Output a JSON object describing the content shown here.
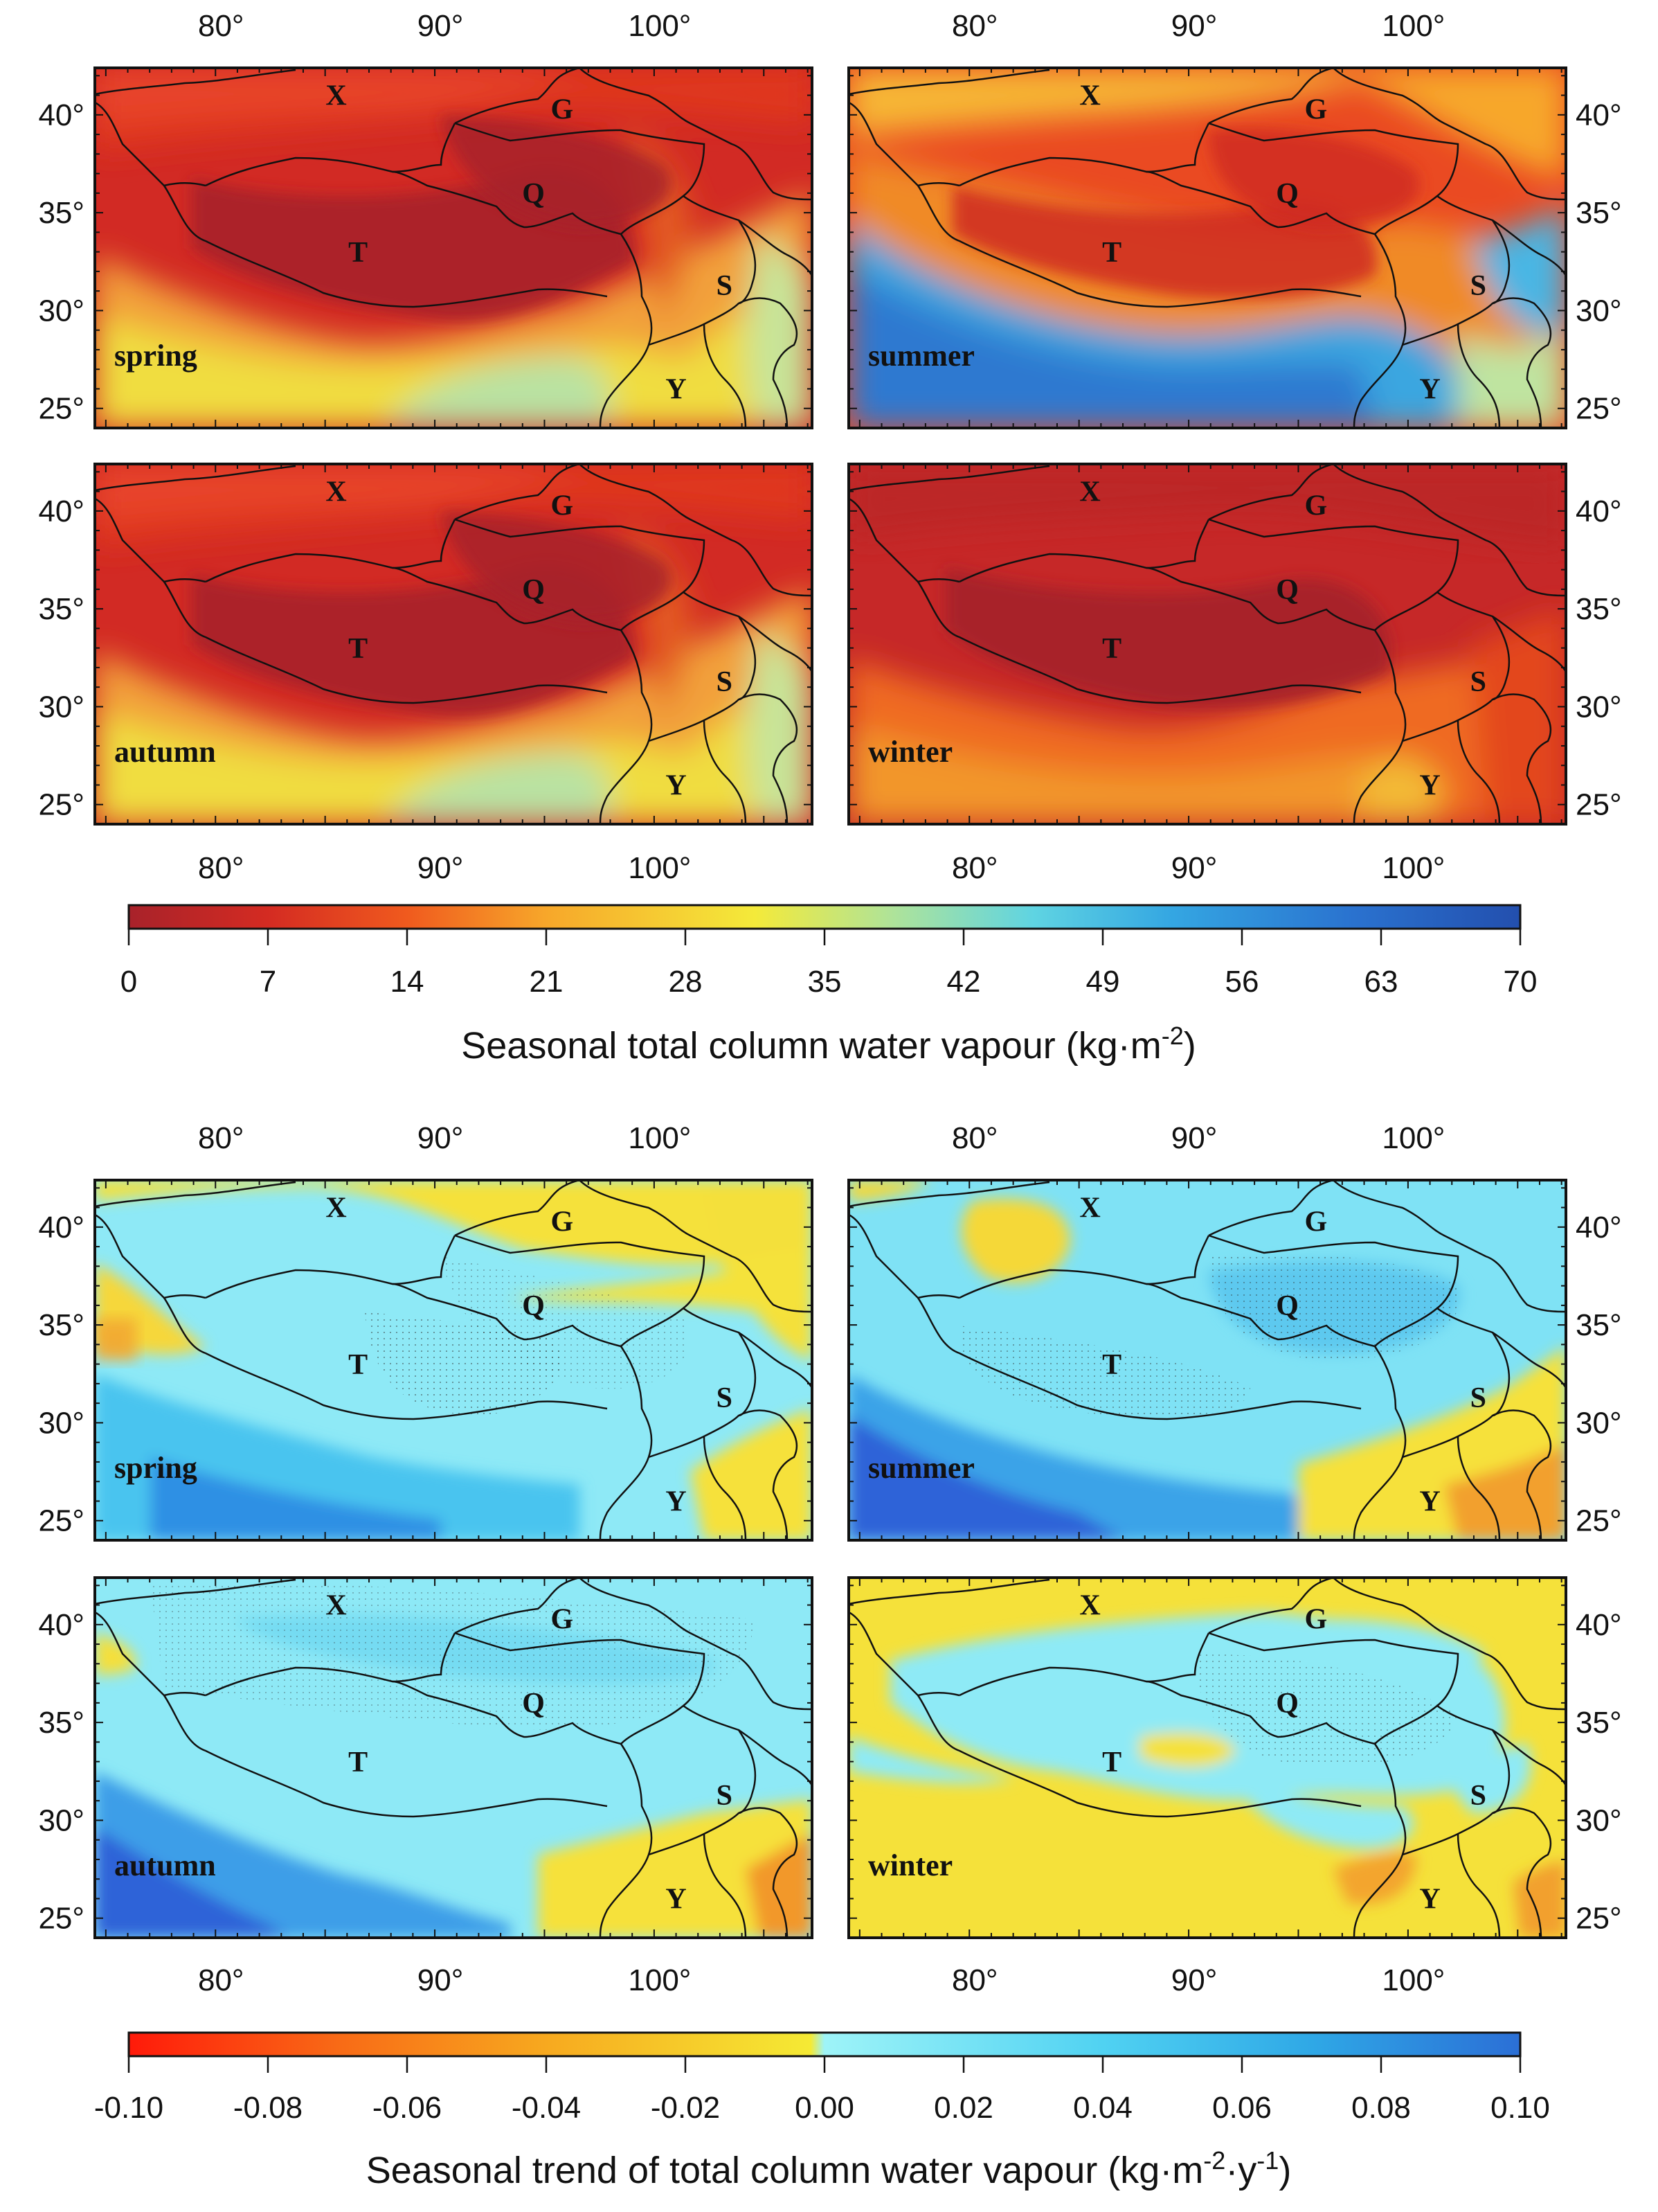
{
  "regions": [
    {
      "label": "X",
      "lon": 85.5,
      "lat": 40.5
    },
    {
      "label": "G",
      "lon": 95.8,
      "lat": 39.8
    },
    {
      "label": "Q",
      "lon": 94.5,
      "lat": 35.5
    },
    {
      "label": "T",
      "lon": 86.5,
      "lat": 32.5
    },
    {
      "label": "S",
      "lon": 103.2,
      "lat": 30.8
    },
    {
      "label": "Y",
      "lon": 101.0,
      "lat": 25.5
    }
  ],
  "map_extent": {
    "lon": [
      74.5,
      107.2
    ],
    "lat": [
      24.0,
      42.4
    ]
  },
  "lon_ticks": [
    "80°",
    "90°",
    "100°"
  ],
  "lat_ticks": [
    "25°",
    "30°",
    "35°",
    "40°"
  ],
  "top_figure": {
    "panels": [
      {
        "season": "spring",
        "style": "base"
      },
      {
        "season": "summer",
        "style": "wet"
      },
      {
        "season": "autumn",
        "style": "base"
      },
      {
        "season": "winter",
        "style": "dry"
      }
    ],
    "colorbar": {
      "ticks": [
        "0",
        "7",
        "14",
        "21",
        "28",
        "35",
        "42",
        "49",
        "56",
        "63",
        "70"
      ],
      "colors": [
        "#a8222a",
        "#d42b22",
        "#f05a1e",
        "#f7a72a",
        "#f4ea3a",
        "#aee39a",
        "#5fd4e2",
        "#34a6e2",
        "#2a72cf",
        "#234fae"
      ],
      "title": "Seasonal total column water vapour (kg·m",
      "title_sup": "-2",
      "title_end": ")"
    }
  },
  "bottom_figure": {
    "panels": [
      {
        "season": "spring",
        "style": "tspring"
      },
      {
        "season": "summer",
        "style": "tsummer"
      },
      {
        "season": "autumn",
        "style": "tautumn"
      },
      {
        "season": "winter",
        "style": "twinter"
      }
    ],
    "colorbar": {
      "ticks": [
        "-0.10",
        "-0.08",
        "-0.06",
        "-0.04",
        "-0.02",
        "0.00",
        "0.02",
        "0.04",
        "0.06",
        "0.08",
        "0.10"
      ],
      "colors": [
        "#ff1a0a",
        "#fb5a14",
        "#f78c1c",
        "#f8bb22",
        "#f5e433",
        "#8ef2f7",
        "#6fe6f5",
        "#48cdf0",
        "#2fa8e6",
        "#2b78d8"
      ],
      "title": "Seasonal trend of total column water vapour (kg·m",
      "title_sup": "-2",
      "title_mid": "·y",
      "title_sup2": "-1",
      "title_end": ")"
    }
  }
}
